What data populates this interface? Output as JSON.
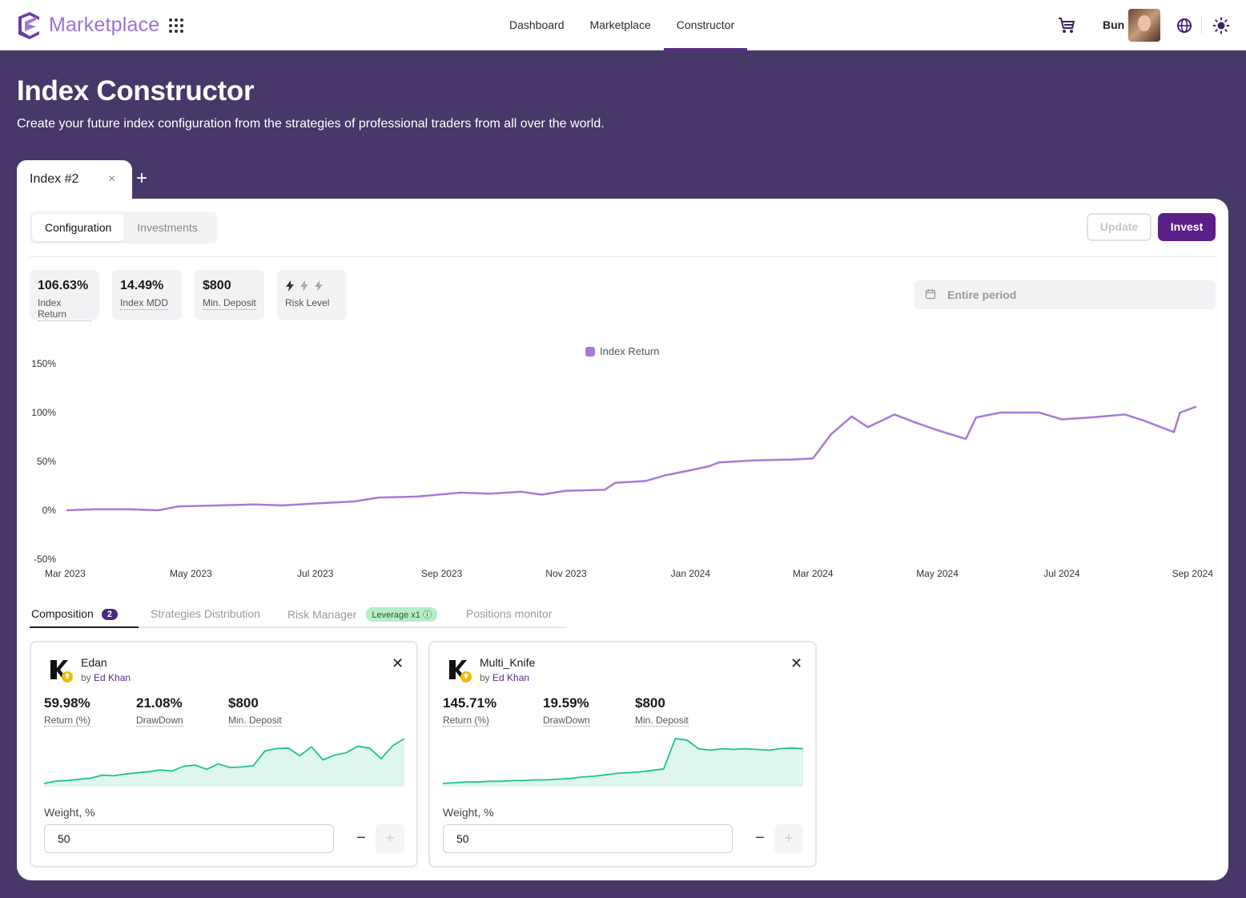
{
  "header": {
    "brand": "Marketplace",
    "nav": [
      {
        "label": "Dashboard",
        "active": false
      },
      {
        "label": "Marketplace",
        "active": false
      },
      {
        "label": "Constructor",
        "active": true
      }
    ],
    "user_name": "Bun",
    "icons": [
      "logo-icon",
      "apps-grid-icon",
      "cart-icon",
      "globe-icon",
      "sun-icon"
    ]
  },
  "hero": {
    "title": "Index Constructor",
    "subtitle": "Create your future index configuration from the strategies of professional traders from all over the world."
  },
  "index_tabs": [
    {
      "label": "Index #2",
      "close": "×"
    }
  ],
  "add_tab": "+",
  "toolbar": {
    "segments": [
      {
        "label": "Configuration",
        "active": true
      },
      {
        "label": "Investments",
        "active": false
      }
    ],
    "update_label": "Update",
    "invest_label": "Invest"
  },
  "stats": [
    {
      "value": "106.63%",
      "label": "Index Return"
    },
    {
      "value": "14.49%",
      "label": "Index MDD"
    },
    {
      "value": "$800",
      "label": "Min. Deposit"
    },
    {
      "label": "Risk Level",
      "level": 1,
      "max": 3
    }
  ],
  "period": {
    "placeholder": "Entire period"
  },
  "colors": {
    "accent": "#5a1f87",
    "line": "#a77ad5",
    "spark": "#1ec28b",
    "bg": "#473869"
  },
  "chart_data": {
    "type": "line",
    "series": [
      {
        "name": "Index Return",
        "points": [
          [
            "2023-03-01",
            0
          ],
          [
            "2023-03-15",
            1
          ],
          [
            "2023-04-01",
            1
          ],
          [
            "2023-04-15",
            0
          ],
          [
            "2023-04-25",
            4
          ],
          [
            "2023-05-15",
            5
          ],
          [
            "2023-06-01",
            6
          ],
          [
            "2023-06-15",
            5
          ],
          [
            "2023-07-01",
            7
          ],
          [
            "2023-07-20",
            9
          ],
          [
            "2023-08-01",
            13
          ],
          [
            "2023-08-20",
            14
          ],
          [
            "2023-09-10",
            18
          ],
          [
            "2023-09-25",
            17
          ],
          [
            "2023-10-10",
            19
          ],
          [
            "2023-10-20",
            16
          ],
          [
            "2023-11-01",
            20
          ],
          [
            "2023-11-20",
            21
          ],
          [
            "2023-11-25",
            28
          ],
          [
            "2023-12-10",
            30
          ],
          [
            "2023-12-20",
            36
          ],
          [
            "2024-01-01",
            41
          ],
          [
            "2024-01-10",
            45
          ],
          [
            "2024-01-15",
            49
          ],
          [
            "2024-02-01",
            51
          ],
          [
            "2024-02-20",
            52
          ],
          [
            "2024-03-01",
            53
          ],
          [
            "2024-03-10",
            78
          ],
          [
            "2024-03-20",
            96
          ],
          [
            "2024-03-28",
            85
          ],
          [
            "2024-04-10",
            98
          ],
          [
            "2024-04-20",
            90
          ],
          [
            "2024-05-01",
            82
          ],
          [
            "2024-05-15",
            73
          ],
          [
            "2024-05-20",
            95
          ],
          [
            "2024-06-01",
            100
          ],
          [
            "2024-06-20",
            100
          ],
          [
            "2024-07-01",
            93
          ],
          [
            "2024-07-15",
            95
          ],
          [
            "2024-08-01",
            98
          ],
          [
            "2024-08-10",
            92
          ],
          [
            "2024-08-25",
            80
          ],
          [
            "2024-08-28",
            100
          ],
          [
            "2024-09-05",
            106
          ]
        ]
      }
    ],
    "xticks": [
      "Mar 2023",
      "May 2023",
      "Jul 2023",
      "Sep 2023",
      "Nov 2023",
      "Jan 2024",
      "Mar 2024",
      "May 2024",
      "Jul 2024",
      "Sep 2024"
    ],
    "yticks": [
      "150%",
      "100%",
      "50%",
      "0%",
      "-50%"
    ],
    "xlim": [
      "2023-03-01",
      "2024-09-05"
    ],
    "ylim": [
      -50,
      150
    ],
    "legend": "top-center",
    "grid": false
  },
  "subtabs": {
    "composition": "Composition",
    "composition_count": "2",
    "distribution": "Strategies Distribution",
    "risk": "Risk Manager",
    "leverage": "Leverage x1",
    "positions": "Positions monitor"
  },
  "strategies": [
    {
      "name": "Edan",
      "by_prefix": "by",
      "author": "Ed Khan",
      "return": "59.98%",
      "return_label": "Return (%)",
      "drawdown": "21.08%",
      "drawdown_label": "DrawDown",
      "deposit": "$800",
      "deposit_label": "Min. Deposit",
      "weight_label": "Weight, %",
      "weight": "50",
      "spark": [
        0,
        4,
        5,
        7,
        9,
        14,
        13,
        16,
        18,
        20,
        23,
        21,
        29,
        31,
        24,
        33,
        27,
        28,
        30,
        55,
        59,
        60,
        47,
        62,
        40,
        48,
        52,
        63,
        60,
        42,
        64,
        76
      ]
    },
    {
      "name": "Multi_Knife",
      "by_prefix": "by",
      "author": "Ed Khan",
      "return": "145.71%",
      "return_label": "Return (%)",
      "drawdown": "19.59%",
      "drawdown_label": "DrawDown",
      "deposit": "$800",
      "deposit_label": "Min. Deposit",
      "weight_label": "Weight, %",
      "weight": "50",
      "spark": [
        0,
        1,
        2,
        2,
        3,
        3,
        4,
        4,
        5,
        5,
        6,
        7,
        9,
        10,
        12,
        14,
        15,
        16,
        18,
        20,
        62,
        60,
        48,
        46,
        48,
        47,
        48,
        47,
        46,
        48,
        49,
        48
      ]
    }
  ]
}
